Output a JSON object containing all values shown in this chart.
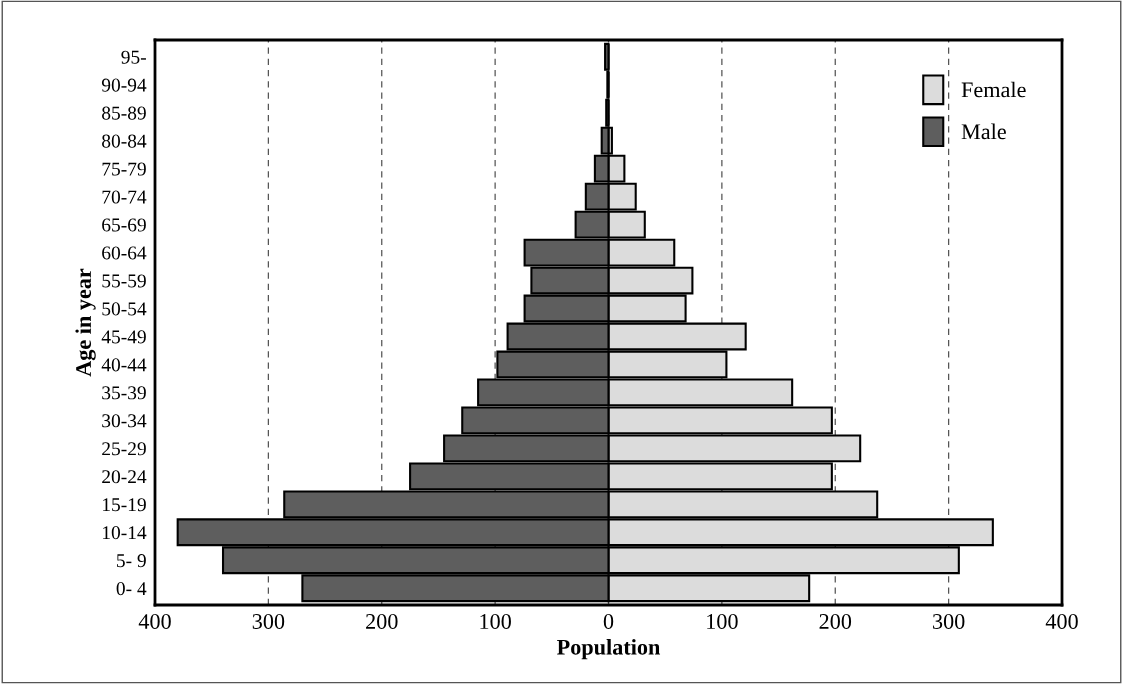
{
  "chart_data": {
    "type": "bar",
    "orientation": "horizontal",
    "stacked": true,
    "xlabel": "Population",
    "ylabel": "Age in year",
    "categories": [
      "95-",
      "90-94",
      "85-89",
      "80-84",
      "75-79",
      "70-74",
      "65-69",
      "60-64",
      "55-59",
      "50-54",
      "45-49",
      "40-44",
      "35-39",
      "30-34",
      "25-29",
      "20-24",
      "15-19",
      "10-14",
      "5- 9",
      "0- 4"
    ],
    "series": [
      {
        "name": "Female",
        "color": "#dcdcdc",
        "values": [
          null,
          null,
          null,
          3,
          14,
          24,
          32,
          58,
          74,
          68,
          121,
          104,
          162,
          197,
          222,
          197,
          237,
          339,
          309,
          177
        ]
      },
      {
        "name": "Male",
        "color": "#5e5e5e",
        "values": [
          -3,
          -1,
          -2,
          -6,
          -12,
          -20,
          -29,
          -74,
          -68,
          -74,
          -89,
          -98,
          -115,
          -129,
          -145,
          -175,
          -286,
          -380,
          -340,
          -270
        ]
      }
    ],
    "xlim": [
      -400,
      400
    ],
    "xticks": [
      {
        "value": -400,
        "label": "400"
      },
      {
        "value": -300,
        "label": "300"
      },
      {
        "value": -200,
        "label": "200"
      },
      {
        "value": -100,
        "label": "100"
      },
      0,
      100,
      200,
      300,
      400
    ],
    "grid": "x",
    "legend": "top right"
  }
}
